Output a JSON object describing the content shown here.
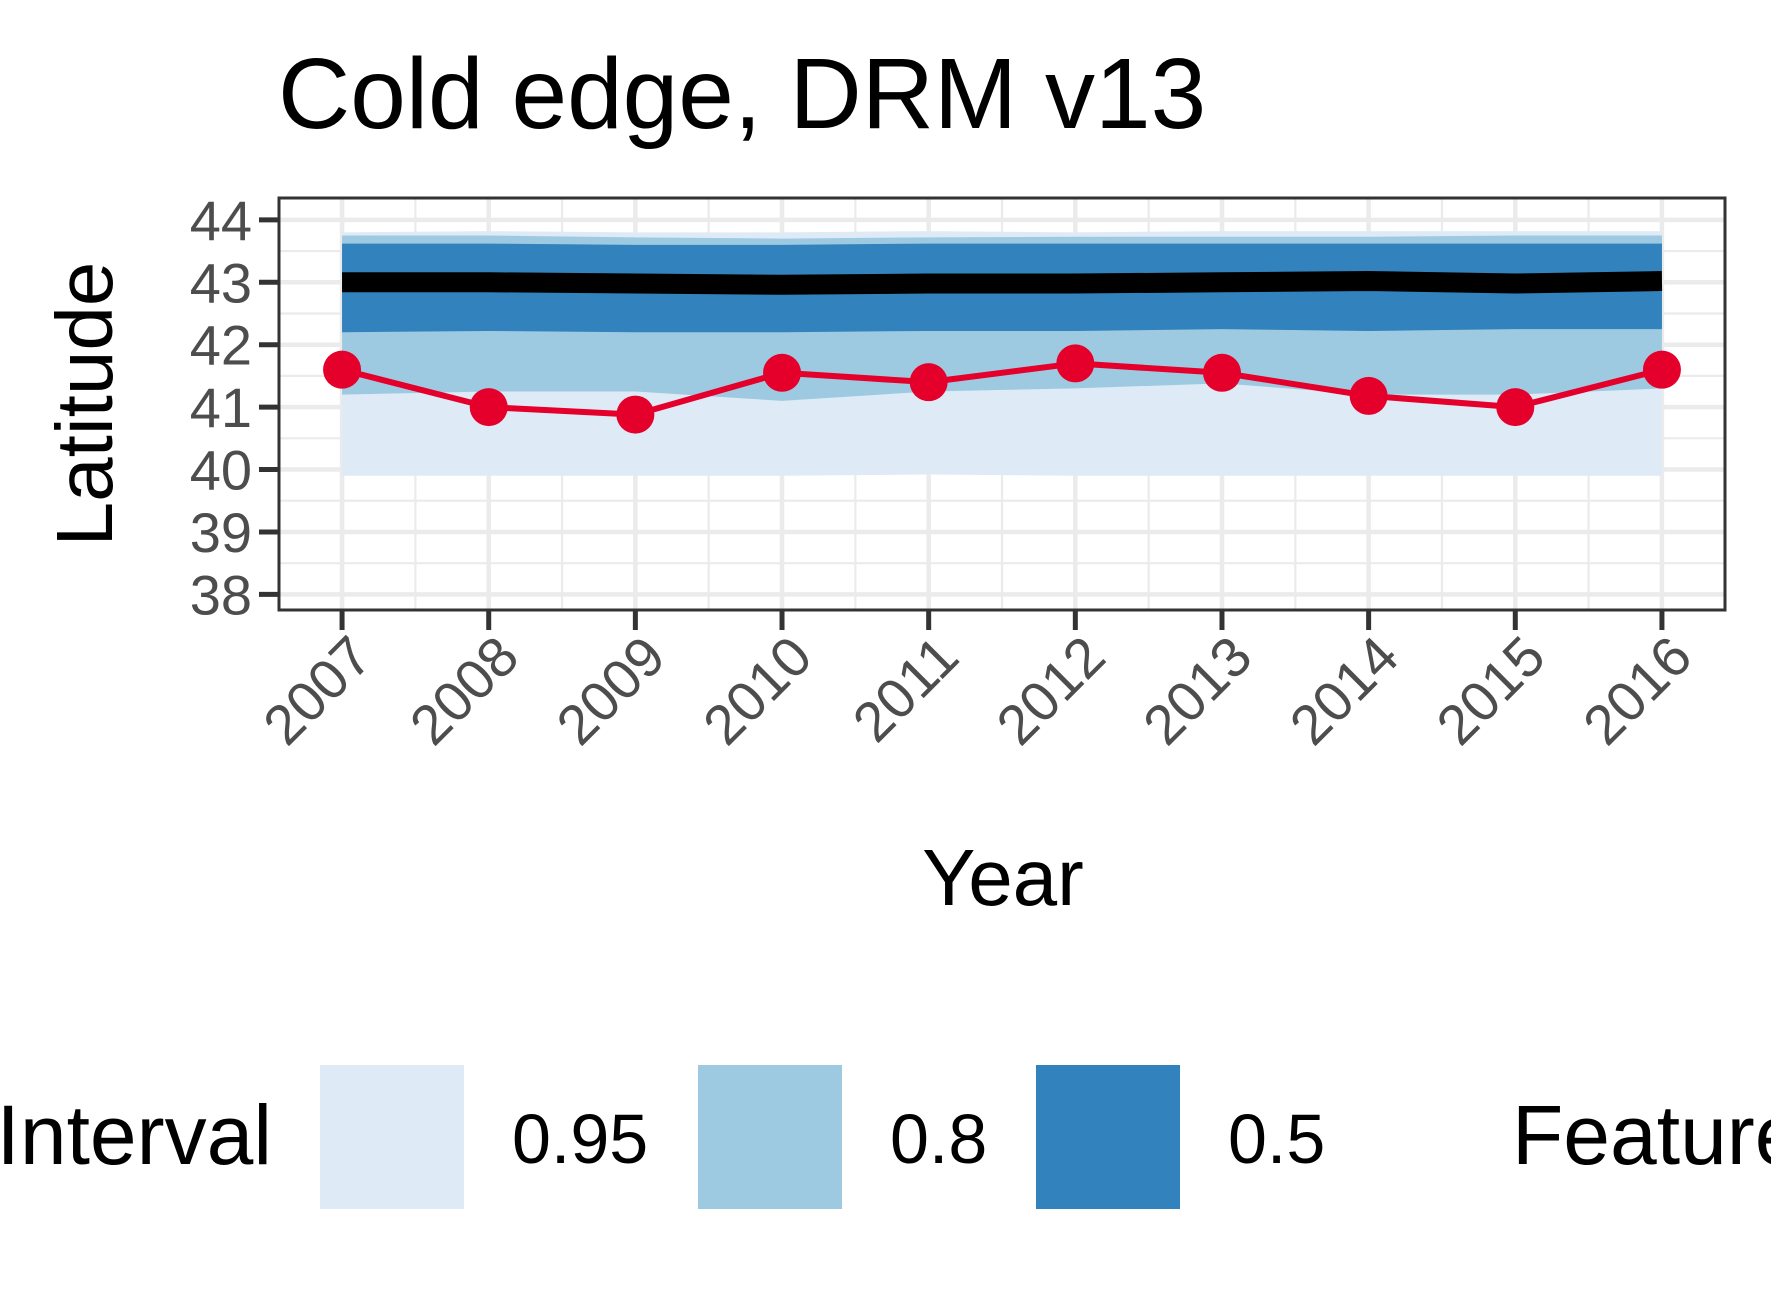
{
  "chart_data": {
    "type": "line",
    "title": "Cold edge, DRM v13",
    "xlabel": "Year",
    "ylabel": "Latitude",
    "x": [
      2007,
      2008,
      2009,
      2010,
      2011,
      2012,
      2013,
      2014,
      2015,
      2016
    ],
    "xlim": [
      2006.57,
      2016.43
    ],
    "ylim": [
      37.75,
      44.35
    ],
    "yticks": [
      38,
      39,
      40,
      41,
      42,
      43,
      44
    ],
    "grid": true,
    "legend_position": "bottom",
    "intervals": [
      {
        "level": "0.95",
        "color": "#deebf7",
        "lower": [
          39.9,
          39.9,
          39.9,
          39.9,
          39.92,
          39.9,
          39.9,
          39.9,
          39.9,
          39.9
        ],
        "upper": [
          43.8,
          43.82,
          43.8,
          43.8,
          43.82,
          43.8,
          43.82,
          43.82,
          43.82,
          43.82
        ]
      },
      {
        "level": "0.8",
        "color": "#9ecae1",
        "lower": [
          41.2,
          41.25,
          41.25,
          41.1,
          41.25,
          41.3,
          41.38,
          41.2,
          41.2,
          41.3
        ],
        "upper": [
          43.75,
          43.75,
          43.72,
          43.7,
          43.72,
          43.73,
          43.73,
          43.73,
          43.75,
          43.75
        ]
      },
      {
        "level": "0.5",
        "color": "#3182bd",
        "lower": [
          42.2,
          42.22,
          42.2,
          42.2,
          42.22,
          42.22,
          42.25,
          42.22,
          42.25,
          42.25
        ],
        "upper": [
          43.62,
          43.62,
          43.6,
          43.6,
          43.62,
          43.62,
          43.62,
          43.62,
          43.62,
          43.62
        ]
      }
    ],
    "series": [
      {
        "role": "median",
        "color": "#000000",
        "values": [
          43.0,
          43.0,
          42.98,
          42.96,
          42.98,
          42.98,
          43.0,
          43.02,
          42.98,
          43.02
        ]
      },
      {
        "role": "observed",
        "color": "#e4002b",
        "values": [
          41.6,
          41.0,
          40.88,
          41.55,
          41.4,
          41.7,
          41.55,
          41.18,
          41.0,
          41.6
        ]
      }
    ],
    "legend": {
      "interval_title": "Interval",
      "interval_levels": [
        "0.95",
        "0.8",
        "0.5"
      ],
      "feature_title": "Feature"
    }
  }
}
